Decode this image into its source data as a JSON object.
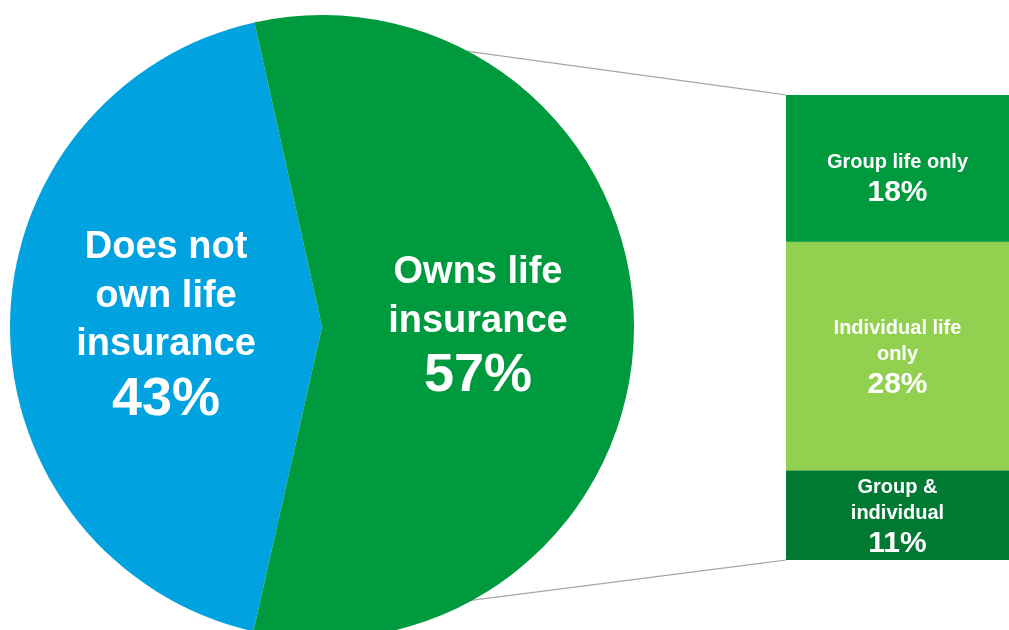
{
  "chart_data": [
    {
      "type": "pie",
      "categories": [
        "Does not own life insurance",
        "Owns life insurance"
      ],
      "values": [
        43,
        57
      ],
      "colors": [
        "#00a3e0",
        "#009a3e"
      ],
      "value_labels": [
        "43%",
        "57%"
      ]
    },
    {
      "type": "bar",
      "stacked": true,
      "categories": [
        null
      ],
      "series": [
        {
          "name": "Group & individual",
          "color": "#007a33",
          "values": [
            11
          ],
          "value_labels": [
            "11%"
          ]
        },
        {
          "name": "Individual life only",
          "color": "#92d050",
          "values": [
            28
          ],
          "value_labels": [
            "28%"
          ]
        },
        {
          "name": "Group life only",
          "color": "#009a3e",
          "values": [
            18
          ],
          "value_labels": [
            "18%"
          ]
        }
      ]
    }
  ]
}
